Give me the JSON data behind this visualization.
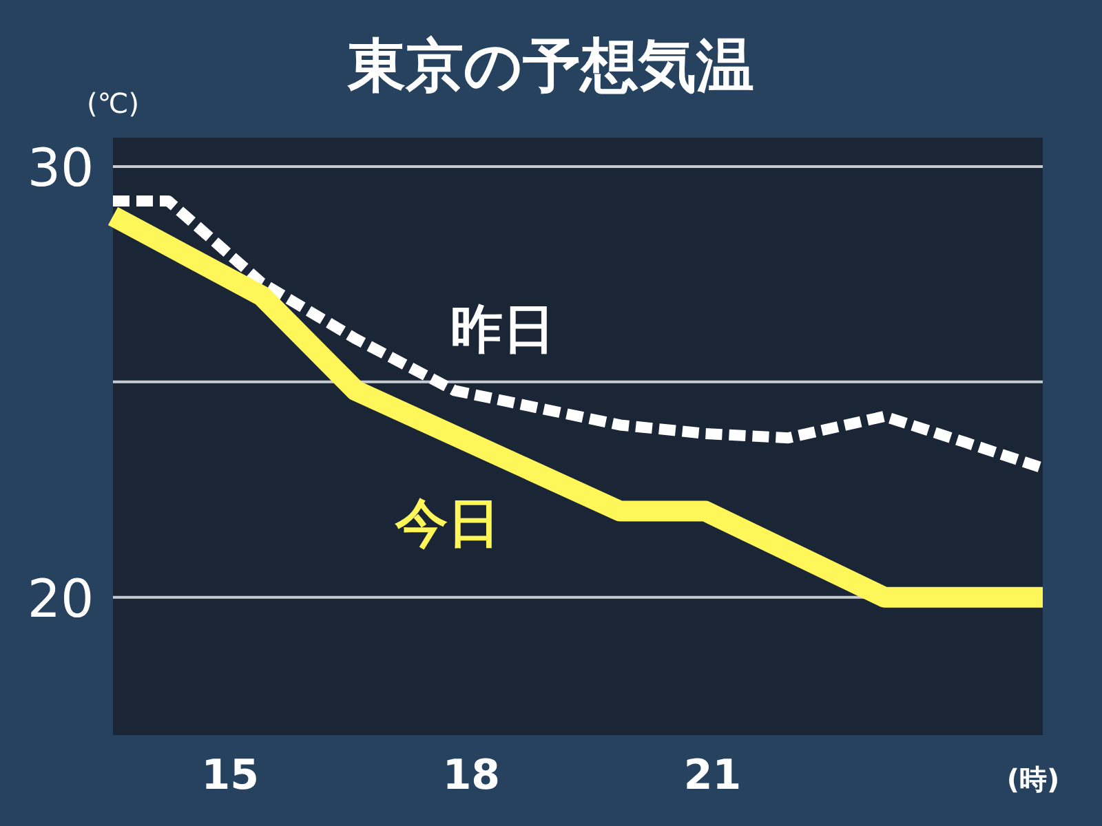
{
  "chart_data": {
    "type": "line",
    "title": "東京の予想気温",
    "ylabel": "(℃)",
    "xlabel": "(時)",
    "xlim": [
      13.54,
      25.11
    ],
    "ylim": [
      16.8,
      30.67
    ],
    "xticks": [
      15,
      18,
      21
    ],
    "yticks": [
      20,
      {
        "value": 25,
        "label": null
      },
      30
    ],
    "grid": "y",
    "series": [
      {
        "name": "昨日",
        "color": "#ffffff",
        "line_style": "dashed",
        "x": [
          13.54,
          14.23,
          15.39,
          16.56,
          17.79,
          18.82,
          19.85,
          20.91,
          21.94,
          23.14,
          24.14,
          25.11
        ],
        "values": [
          29.2,
          29.2,
          27.3,
          26.0,
          24.8,
          24.4,
          24.0,
          23.8,
          23.7,
          24.2,
          23.6,
          23.0
        ]
      },
      {
        "name": "今日",
        "color": "#fff75a",
        "line_style": "solid",
        "x": [
          13.54,
          15.39,
          16.56,
          19.85,
          20.91,
          23.14,
          25.11
        ],
        "values": [
          28.85,
          27.0,
          24.8,
          22.0,
          22.0,
          20.0,
          20.0
        ]
      }
    ]
  }
}
